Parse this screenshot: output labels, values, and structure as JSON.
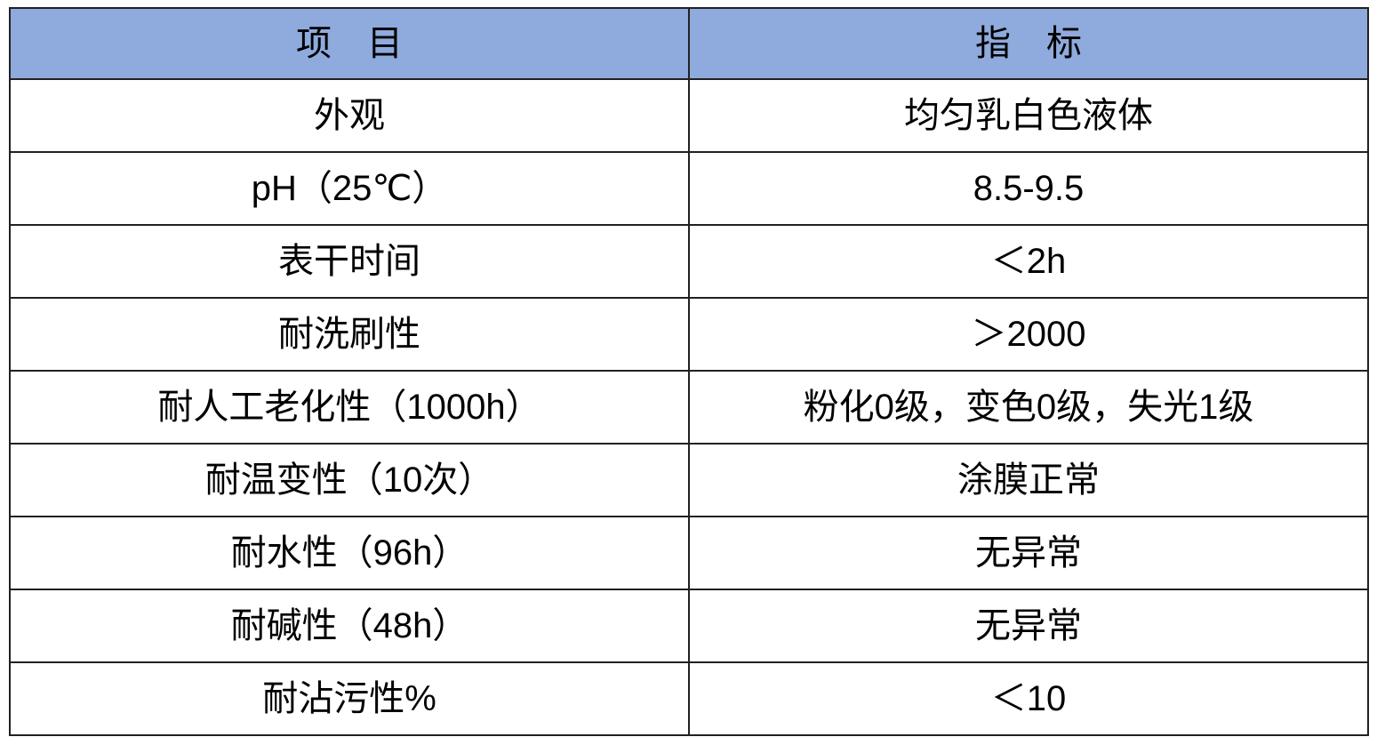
{
  "table": {
    "title": "product-spec-table",
    "header": {
      "item": "项　目",
      "indicator": "指　标"
    },
    "rows": [
      {
        "item": "外观",
        "indicator": "均匀乳白色液体"
      },
      {
        "item": "pH（25℃）",
        "indicator": "8.5-9.5"
      },
      {
        "item": "表干时间",
        "indicator": "＜2h"
      },
      {
        "item": "耐洗刷性",
        "indicator": "＞2000"
      },
      {
        "item": "耐人工老化性（1000h）",
        "indicator": "粉化0级，变色0级，失光1级"
      },
      {
        "item": "耐温变性（10次）",
        "indicator": "涂膜正常"
      },
      {
        "item": "耐水性（96h）",
        "indicator": "无异常"
      },
      {
        "item": "耐碱性（48h）",
        "indicator": "无异常"
      },
      {
        "item": "耐沾污性%",
        "indicator": "＜10"
      }
    ],
    "colors": {
      "header_bg": "#8FAADC",
      "border": "#212121",
      "text": "#000000"
    }
  }
}
